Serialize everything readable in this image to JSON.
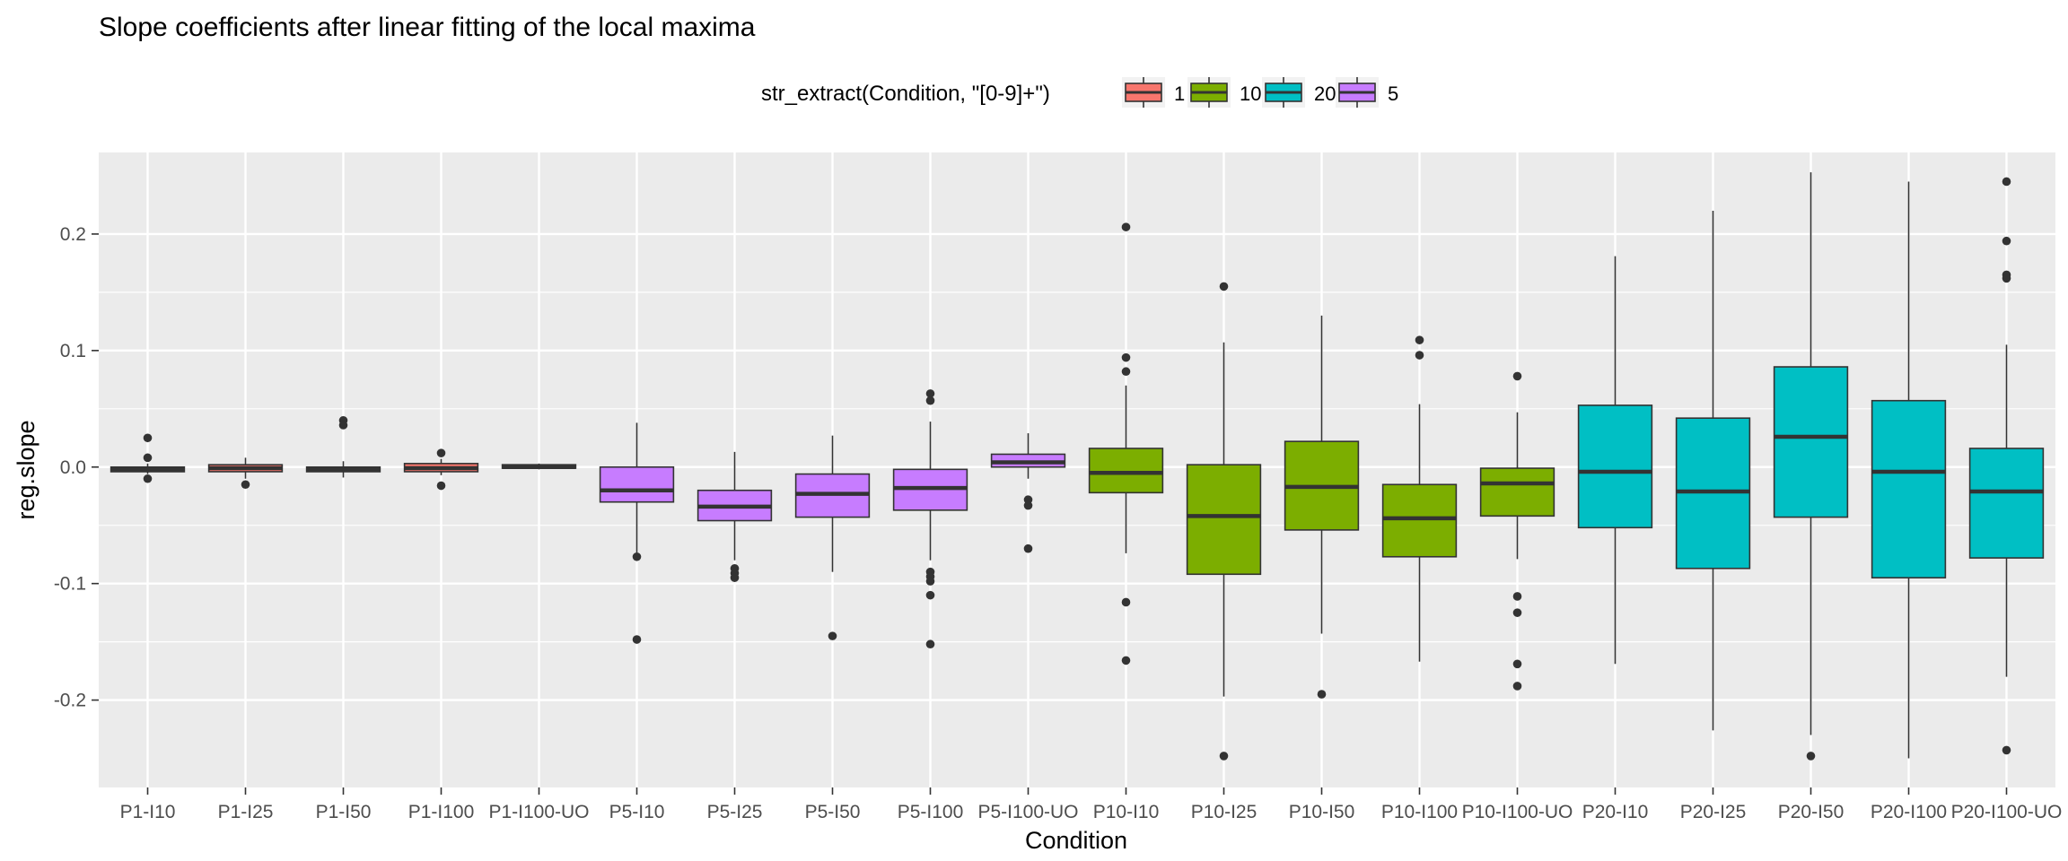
{
  "chart_data": {
    "type": "boxplot",
    "title": "Slope coefficients after linear fitting of the local maxima",
    "xlabel": "Condition",
    "ylabel": "reg.slope",
    "ylim": [
      -0.275,
      0.27
    ],
    "yticks": [
      -0.2,
      -0.1,
      0.0,
      0.1,
      0.2
    ],
    "ytick_labels": [
      "-0.2",
      "-0.1",
      "0.0",
      "0.1",
      "0.2"
    ],
    "grid": true,
    "legend": {
      "title": "str_extract(Condition, \"[0-9]+\")",
      "position": "top",
      "entries": [
        {
          "label": "1",
          "color": "#F8766D"
        },
        {
          "label": "10",
          "color": "#7CAE00"
        },
        {
          "label": "20",
          "color": "#00BFC4"
        },
        {
          "label": "5",
          "color": "#C77CFF"
        }
      ]
    },
    "categories": [
      "P1-I10",
      "P1-I25",
      "P1-I50",
      "P1-I100",
      "P1-I100-UO",
      "P5-I10",
      "P5-I25",
      "P5-I50",
      "P5-I100",
      "P5-I100-UO",
      "P10-I10",
      "P10-I25",
      "P10-I50",
      "P10-I100",
      "P10-I100-UO",
      "P20-I10",
      "P20-I25",
      "P20-I50",
      "P20-I100",
      "P20-I100-UO"
    ],
    "boxes": [
      {
        "group": "1",
        "lo": -0.006,
        "q1": -0.004,
        "median": -0.002,
        "q3": 0.0,
        "hi": 0.003,
        "outliers": [
          0.025,
          0.008,
          -0.01
        ]
      },
      {
        "group": "1",
        "lo": -0.01,
        "q1": -0.004,
        "median": -0.001,
        "q3": 0.002,
        "hi": 0.008,
        "outliers": [
          -0.015
        ]
      },
      {
        "group": "1",
        "lo": -0.009,
        "q1": -0.004,
        "median": -0.002,
        "q3": 0.0,
        "hi": 0.005,
        "outliers": [
          0.04,
          0.036
        ]
      },
      {
        "group": "1",
        "lo": -0.007,
        "q1": -0.004,
        "median": -0.001,
        "q3": 0.003,
        "hi": 0.007,
        "outliers": [
          0.012,
          -0.016
        ]
      },
      {
        "group": "1",
        "lo": -0.002,
        "q1": -0.001,
        "median": 0.0,
        "q3": 0.002,
        "hi": 0.003,
        "outliers": []
      },
      {
        "group": "5",
        "lo": -0.075,
        "q1": -0.03,
        "median": -0.02,
        "q3": 0.0,
        "hi": 0.038,
        "outliers": [
          -0.077,
          -0.148
        ]
      },
      {
        "group": "5",
        "lo": -0.08,
        "q1": -0.046,
        "median": -0.034,
        "q3": -0.02,
        "hi": 0.013,
        "outliers": [
          -0.087,
          -0.091,
          -0.095
        ]
      },
      {
        "group": "5",
        "lo": -0.09,
        "q1": -0.043,
        "median": -0.023,
        "q3": -0.006,
        "hi": 0.027,
        "outliers": [
          -0.145
        ]
      },
      {
        "group": "5",
        "lo": -0.08,
        "q1": -0.037,
        "median": -0.018,
        "q3": -0.002,
        "hi": 0.039,
        "outliers": [
          0.063,
          0.057,
          -0.09,
          -0.094,
          -0.098,
          -0.11,
          -0.152
        ]
      },
      {
        "group": "5",
        "lo": -0.01,
        "q1": 0.0,
        "median": 0.004,
        "q3": 0.011,
        "hi": 0.029,
        "outliers": [
          -0.028,
          -0.033,
          -0.07
        ]
      },
      {
        "group": "10",
        "lo": -0.074,
        "q1": -0.022,
        "median": -0.005,
        "q3": 0.016,
        "hi": 0.07,
        "outliers": [
          0.206,
          0.094,
          0.082,
          -0.116,
          -0.166
        ]
      },
      {
        "group": "10",
        "lo": -0.197,
        "q1": -0.092,
        "median": -0.042,
        "q3": 0.002,
        "hi": 0.107,
        "outliers": [
          0.155,
          -0.248
        ]
      },
      {
        "group": "10",
        "lo": -0.143,
        "q1": -0.054,
        "median": -0.017,
        "q3": 0.022,
        "hi": 0.13,
        "outliers": [
          -0.195
        ]
      },
      {
        "group": "10",
        "lo": -0.167,
        "q1": -0.077,
        "median": -0.044,
        "q3": -0.015,
        "hi": 0.054,
        "outliers": [
          0.109,
          0.096
        ]
      },
      {
        "group": "10",
        "lo": -0.079,
        "q1": -0.042,
        "median": -0.014,
        "q3": -0.001,
        "hi": 0.047,
        "outliers": [
          0.078,
          -0.111,
          -0.125,
          -0.169,
          -0.188
        ]
      },
      {
        "group": "20",
        "lo": -0.169,
        "q1": -0.052,
        "median": -0.004,
        "q3": 0.053,
        "hi": 0.181,
        "outliers": []
      },
      {
        "group": "20",
        "lo": -0.226,
        "q1": -0.087,
        "median": -0.021,
        "q3": 0.042,
        "hi": 0.22,
        "outliers": []
      },
      {
        "group": "20",
        "lo": -0.23,
        "q1": -0.043,
        "median": 0.026,
        "q3": 0.086,
        "hi": 0.253,
        "outliers": [
          -0.248
        ]
      },
      {
        "group": "20",
        "lo": -0.25,
        "q1": -0.095,
        "median": -0.004,
        "q3": 0.057,
        "hi": 0.245,
        "outliers": []
      },
      {
        "group": "20",
        "lo": -0.18,
        "q1": -0.078,
        "median": -0.021,
        "q3": 0.016,
        "hi": 0.105,
        "outliers": [
          0.245,
          0.194,
          0.165,
          0.162,
          -0.243
        ]
      }
    ]
  }
}
